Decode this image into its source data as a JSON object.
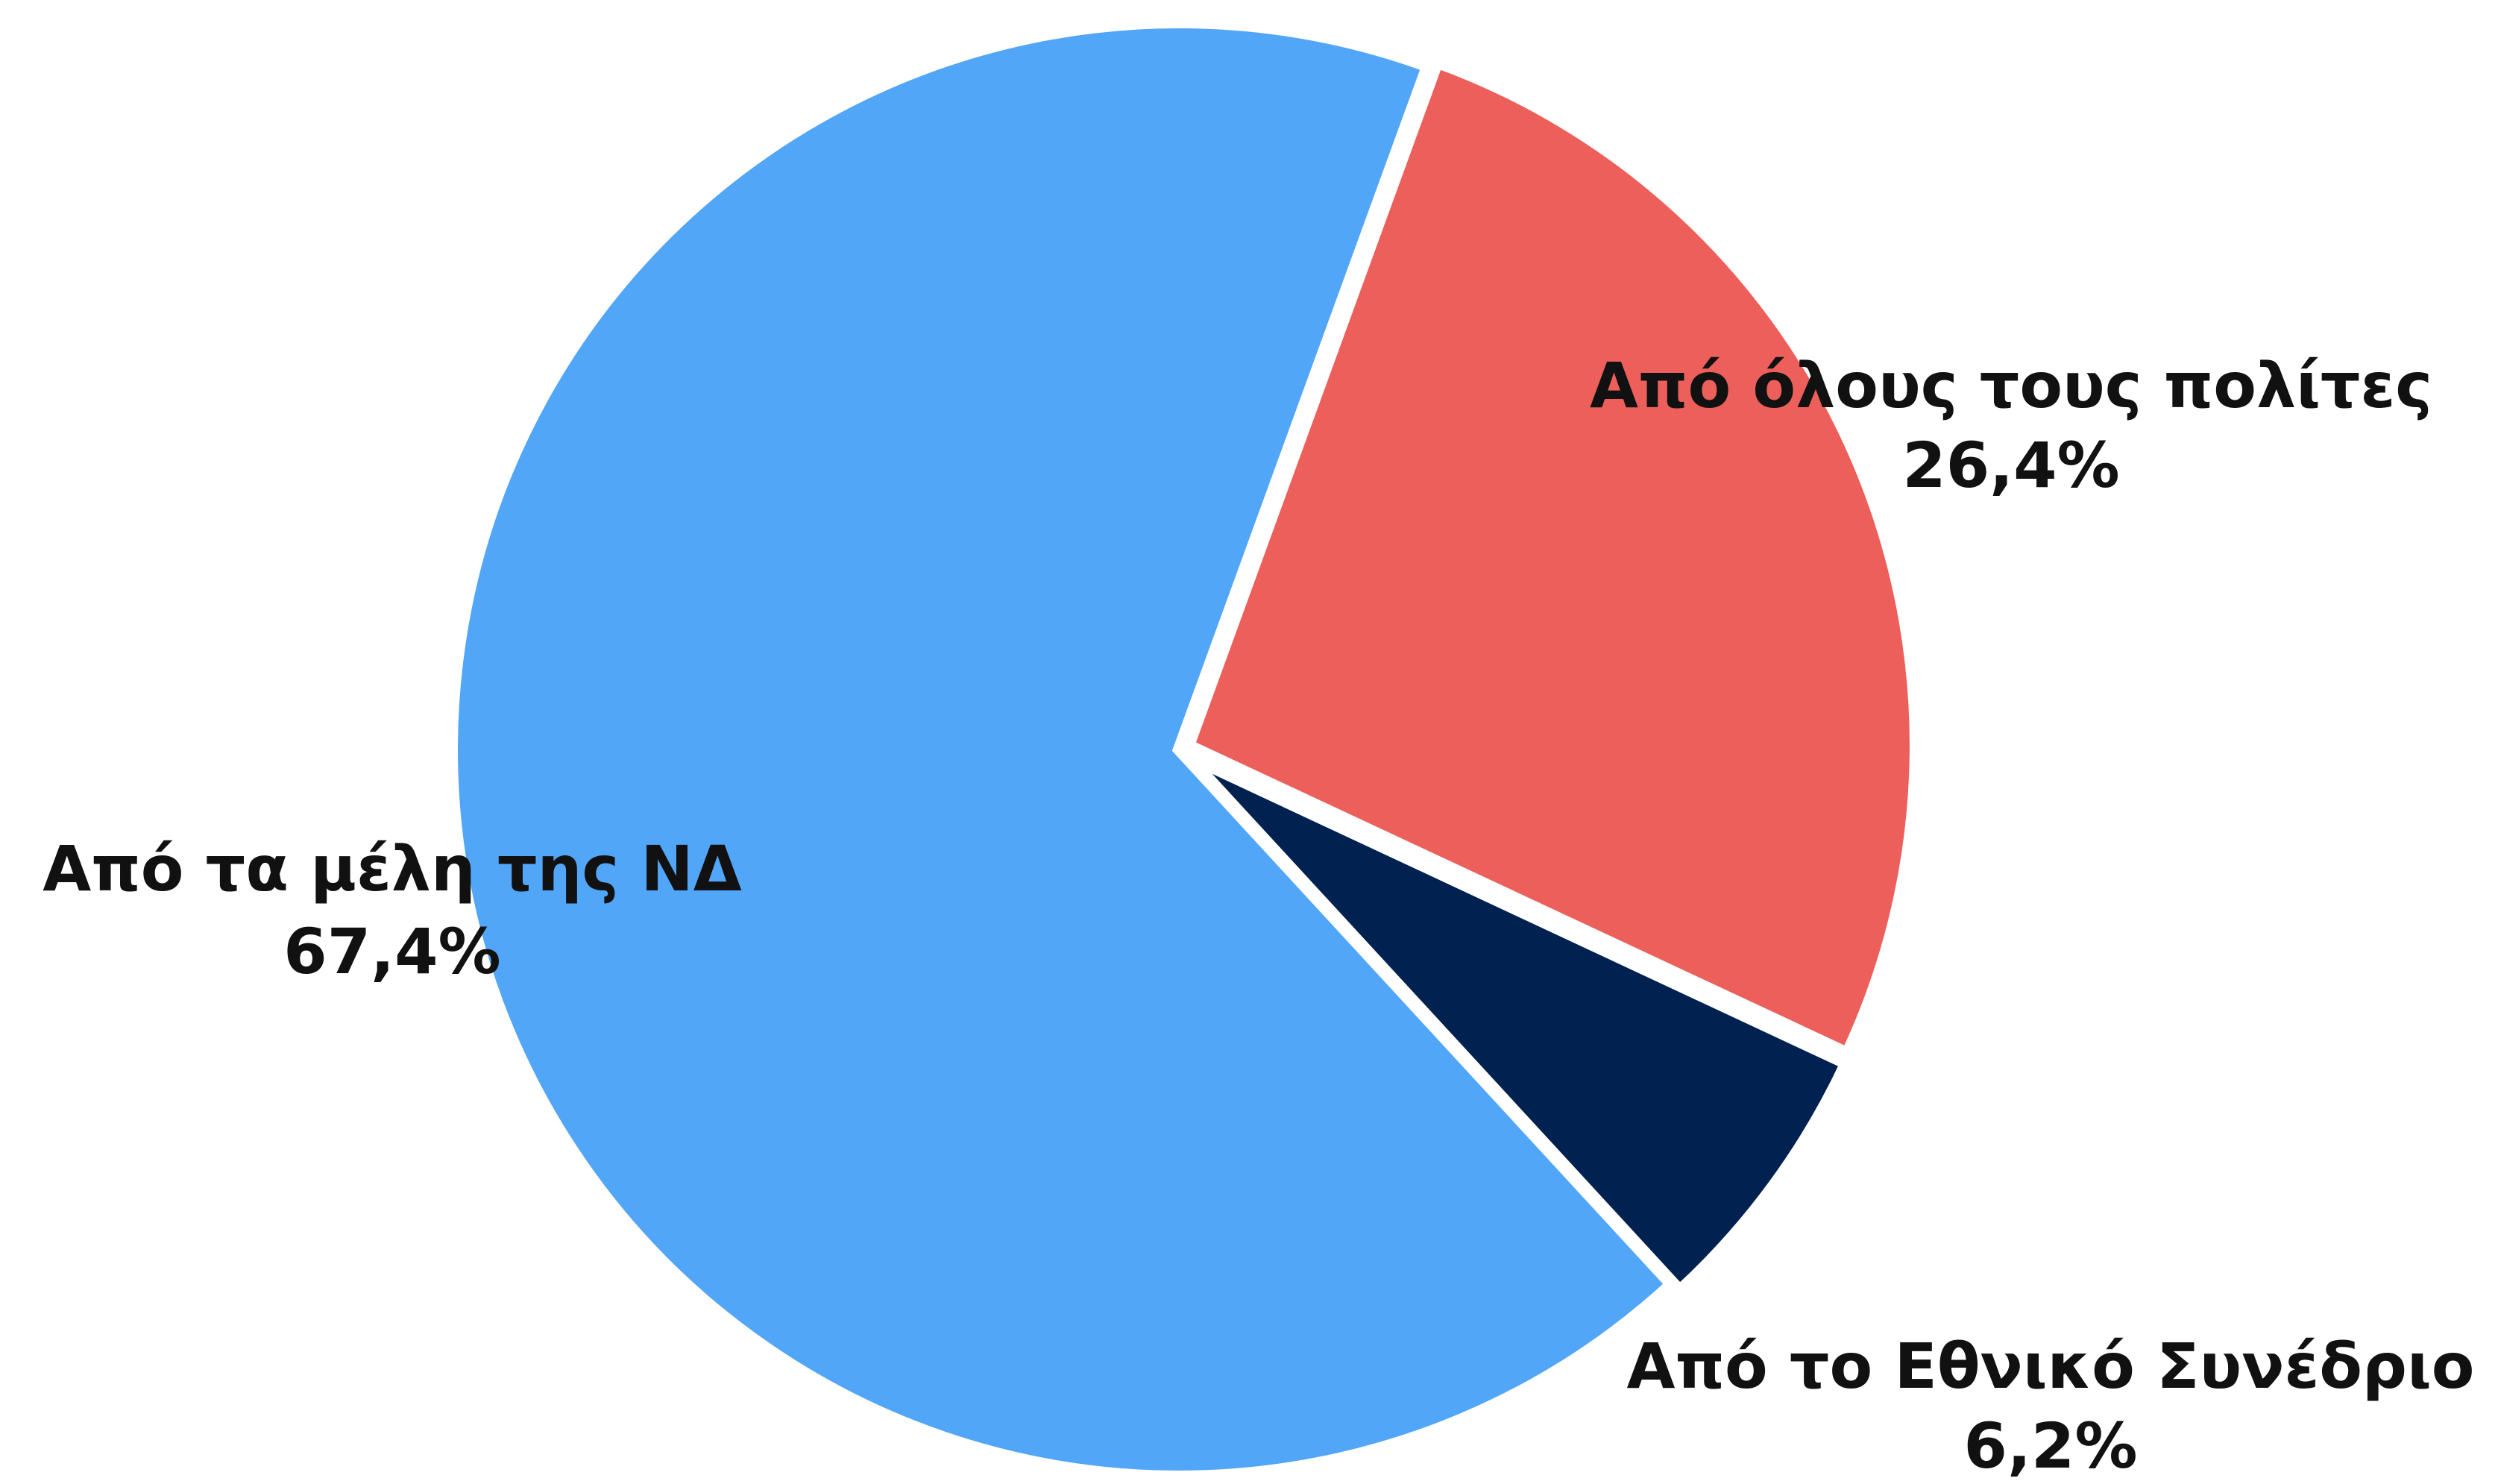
{
  "chart_data": {
    "type": "pie",
    "categories": [
      "Από όλους τους πολίτες",
      "Από το Εθνικό Συνέδριο",
      "Από τα μέλη της ΝΔ"
    ],
    "values": [
      26.4,
      6.2,
      67.4
    ],
    "value_labels": [
      "26,4%",
      "6,2%",
      "67,4%"
    ],
    "colors": [
      "#ec5f5b",
      "#012250",
      "#52a6f8"
    ]
  }
}
